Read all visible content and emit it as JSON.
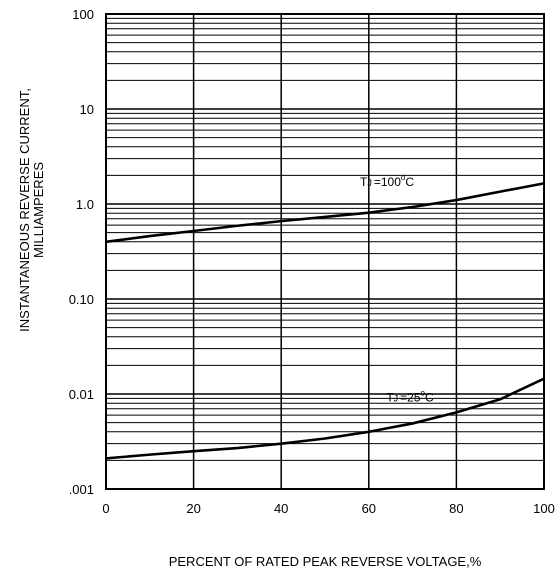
{
  "chart_data": {
    "type": "line",
    "title": "",
    "xlabel": "PERCENT OF RATED PEAK REVERSE VOLTAGE,%",
    "ylabel_line1": "INSTANTANEOUS REVERSE CURRENT,",
    "ylabel_line2": "MILLIAMPERES",
    "x_scale": "linear",
    "y_scale": "log",
    "xlim": [
      0,
      100
    ],
    "ylim": [
      0.001,
      100
    ],
    "grid": true,
    "x_ticks": [
      {
        "value": 0,
        "label": "0"
      },
      {
        "value": 20,
        "label": "20"
      },
      {
        "value": 40,
        "label": "40"
      },
      {
        "value": 60,
        "label": "60"
      },
      {
        "value": 80,
        "label": "80"
      },
      {
        "value": 100,
        "label": "100"
      }
    ],
    "y_ticks": [
      {
        "value": 100,
        "label": "100"
      },
      {
        "value": 10,
        "label": "10"
      },
      {
        "value": 1,
        "label": "1.0"
      },
      {
        "value": 0.1,
        "label": "0.10"
      },
      {
        "value": 0.01,
        "label": "0.01"
      },
      {
        "value": 0.001,
        "label": ".001"
      }
    ],
    "series": [
      {
        "annotation_prefix": "T",
        "annotation_sub": "J",
        "annotation_value": "=100",
        "annotation_unit": "C",
        "x": [
          0,
          10,
          20,
          30,
          40,
          50,
          60,
          70,
          80,
          90,
          100
        ],
        "y": [
          0.4,
          0.46,
          0.52,
          0.59,
          0.66,
          0.73,
          0.81,
          0.93,
          1.1,
          1.35,
          1.65
        ]
      },
      {
        "annotation_prefix": "T",
        "annotation_sub": "J",
        "annotation_value": "=25",
        "annotation_unit": "C",
        "x": [
          0,
          10,
          20,
          30,
          40,
          50,
          60,
          70,
          80,
          90,
          100
        ],
        "y": [
          0.0021,
          0.0023,
          0.0025,
          0.0027,
          0.003,
          0.0034,
          0.004,
          0.0049,
          0.0064,
          0.0088,
          0.0145
        ]
      }
    ]
  }
}
